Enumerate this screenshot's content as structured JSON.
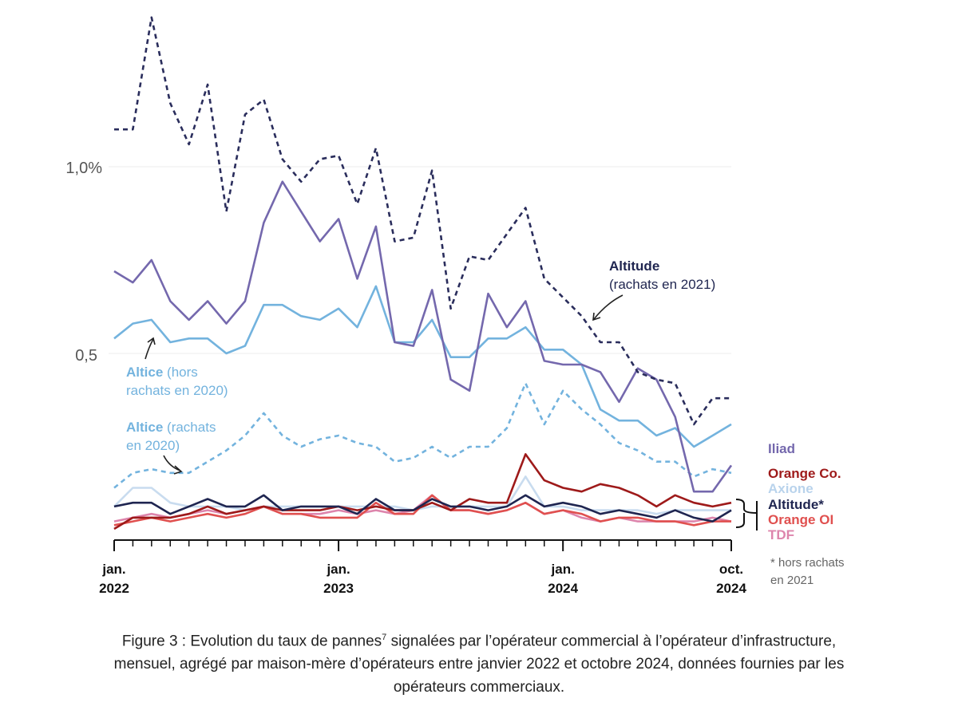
{
  "chart_data": {
    "type": "line",
    "title": "",
    "ylim": [
      0,
      1.45
    ],
    "y_ticks": [
      {
        "value": 1.0,
        "label": "1,0%"
      },
      {
        "value": 0.5,
        "label": "0,5"
      }
    ],
    "grid": true,
    "x_start": "2022-01",
    "x_end": "2024-10",
    "x_tick_labels": [
      {
        "month": "2022-01",
        "line1": "jan.",
        "line2": "2022"
      },
      {
        "month": "2023-01",
        "line1": "jan.",
        "line2": "2023"
      },
      {
        "month": "2024-01",
        "line1": "jan.",
        "line2": "2024"
      },
      {
        "month": "2024-10",
        "line1": "oct.",
        "line2": "2024"
      }
    ],
    "series": [
      {
        "name": "Altitude (rachats en 2021)",
        "color": "#2a2d5c",
        "dash": true,
        "values": [
          1.1,
          1.1,
          1.4,
          1.17,
          1.06,
          1.22,
          0.88,
          1.14,
          1.18,
          1.02,
          0.96,
          1.02,
          1.03,
          0.9,
          1.05,
          0.8,
          0.81,
          0.99,
          0.62,
          0.76,
          0.75,
          0.82,
          0.89,
          0.7,
          0.65,
          0.6,
          0.53,
          0.53,
          0.45,
          0.43,
          0.42,
          0.31,
          0.38,
          0.38
        ]
      },
      {
        "name": "Iliad",
        "color": "#7468ad",
        "dash": false,
        "values": [
          0.72,
          0.69,
          0.75,
          0.64,
          0.59,
          0.64,
          0.58,
          0.64,
          0.85,
          0.96,
          0.88,
          0.8,
          0.86,
          0.7,
          0.84,
          0.53,
          0.52,
          0.67,
          0.43,
          0.4,
          0.66,
          0.57,
          0.64,
          0.48,
          0.47,
          0.47,
          0.45,
          0.37,
          0.46,
          0.43,
          0.33,
          0.13,
          0.13,
          0.2
        ]
      },
      {
        "name": "Altice (hors rachats en 2020)",
        "color": "#73b3de",
        "dash": false,
        "values": [
          0.54,
          0.58,
          0.59,
          0.53,
          0.54,
          0.54,
          0.5,
          0.52,
          0.63,
          0.63,
          0.6,
          0.59,
          0.62,
          0.57,
          0.68,
          0.53,
          0.53,
          0.59,
          0.49,
          0.49,
          0.54,
          0.54,
          0.57,
          0.51,
          0.51,
          0.47,
          0.35,
          0.32,
          0.32,
          0.28,
          0.3,
          0.25,
          0.28,
          0.31
        ]
      },
      {
        "name": "Altice (rachats en 2020)",
        "color": "#73b3de",
        "dash": true,
        "values": [
          0.14,
          0.18,
          0.19,
          0.18,
          0.18,
          0.21,
          0.24,
          0.28,
          0.34,
          0.28,
          0.25,
          0.27,
          0.28,
          0.26,
          0.25,
          0.21,
          0.22,
          0.25,
          0.22,
          0.25,
          0.25,
          0.3,
          0.42,
          0.31,
          0.4,
          0.35,
          0.31,
          0.26,
          0.24,
          0.21,
          0.21,
          0.17,
          0.19,
          0.18
        ]
      },
      {
        "name": "Axione",
        "color": "#c9dcef",
        "dash": false,
        "values": [
          0.09,
          0.14,
          0.14,
          0.1,
          0.09,
          0.09,
          0.09,
          0.08,
          0.09,
          0.09,
          0.09,
          0.09,
          0.09,
          0.09,
          0.09,
          0.09,
          0.08,
          0.09,
          0.09,
          0.09,
          0.09,
          0.09,
          0.17,
          0.09,
          0.09,
          0.08,
          0.08,
          0.08,
          0.08,
          0.07,
          0.08,
          0.08,
          0.08,
          0.08
        ]
      },
      {
        "name": "Orange Co.",
        "color": "#9e1a1a",
        "dash": false,
        "values": [
          0.03,
          0.06,
          0.06,
          0.06,
          0.07,
          0.09,
          0.07,
          0.08,
          0.09,
          0.08,
          0.08,
          0.08,
          0.09,
          0.08,
          0.09,
          0.08,
          0.08,
          0.1,
          0.08,
          0.11,
          0.1,
          0.1,
          0.23,
          0.16,
          0.14,
          0.13,
          0.15,
          0.14,
          0.12,
          0.09,
          0.12,
          0.1,
          0.09,
          0.1
        ]
      },
      {
        "name": "Altitude*",
        "color": "#1f2550",
        "dash": false,
        "values": [
          0.09,
          0.1,
          0.1,
          0.07,
          0.09,
          0.11,
          0.09,
          0.09,
          0.12,
          0.08,
          0.09,
          0.09,
          0.09,
          0.07,
          0.11,
          0.08,
          0.08,
          0.11,
          0.09,
          0.09,
          0.08,
          0.09,
          0.12,
          0.09,
          0.1,
          0.09,
          0.07,
          0.08,
          0.07,
          0.06,
          0.08,
          0.06,
          0.05,
          0.08
        ]
      },
      {
        "name": "Orange OI",
        "color": "#e0504f",
        "dash": false,
        "values": [
          0.04,
          0.05,
          0.06,
          0.05,
          0.06,
          0.07,
          0.06,
          0.07,
          0.09,
          0.07,
          0.07,
          0.06,
          0.06,
          0.06,
          0.1,
          0.07,
          0.07,
          0.12,
          0.08,
          0.08,
          0.07,
          0.08,
          0.1,
          0.07,
          0.08,
          0.07,
          0.05,
          0.06,
          0.06,
          0.05,
          0.05,
          0.04,
          0.05,
          0.05
        ]
      },
      {
        "name": "TDF",
        "color": "#dd85ac",
        "dash": false,
        "values": [
          0.05,
          0.06,
          0.07,
          0.06,
          0.07,
          0.08,
          0.07,
          0.08,
          0.09,
          0.07,
          0.07,
          0.07,
          0.08,
          0.07,
          0.08,
          0.07,
          0.08,
          0.12,
          0.08,
          0.08,
          0.07,
          0.08,
          0.1,
          0.07,
          0.08,
          0.06,
          0.05,
          0.06,
          0.05,
          0.05,
          0.05,
          0.05,
          0.06,
          0.05
        ]
      }
    ],
    "annotations": {
      "altitude_rachats": {
        "bold": "Altitude",
        "rest": "(rachats en 2021)"
      },
      "altice_hors": {
        "bold": "Altice",
        "rest1": "(hors",
        "line2": "rachats en 2020)"
      },
      "altice_rachats": {
        "bold": "Altice",
        "rest1": "(rachats",
        "line2": "en 2020)"
      },
      "footnote": {
        "line1": "* hors rachats",
        "line2": "en 2021"
      }
    },
    "right_labels": [
      {
        "text": "Iliad",
        "color": "#7468ad"
      },
      {
        "text": "Orange Co.",
        "color": "#9e1a1a"
      },
      {
        "text": "Axione",
        "color": "#b9d3ec"
      },
      {
        "text": "Altitude*",
        "color": "#1f2550"
      },
      {
        "text": "Orange OI",
        "color": "#e0504f"
      },
      {
        "text": "TDF",
        "color": "#dd85ac"
      }
    ]
  },
  "caption": {
    "line1_pre": "Figure 3 : Evolution du taux de pannes",
    "sup": "7",
    "line1_post": " signalées par l’opérateur commercial à l’opérateur d’infrastructure,",
    "line2": "mensuel, agrégé par maison-mère d’opérateurs entre janvier 2022 et octobre 2024, données fournies par les",
    "line3": "opérateurs commerciaux."
  }
}
